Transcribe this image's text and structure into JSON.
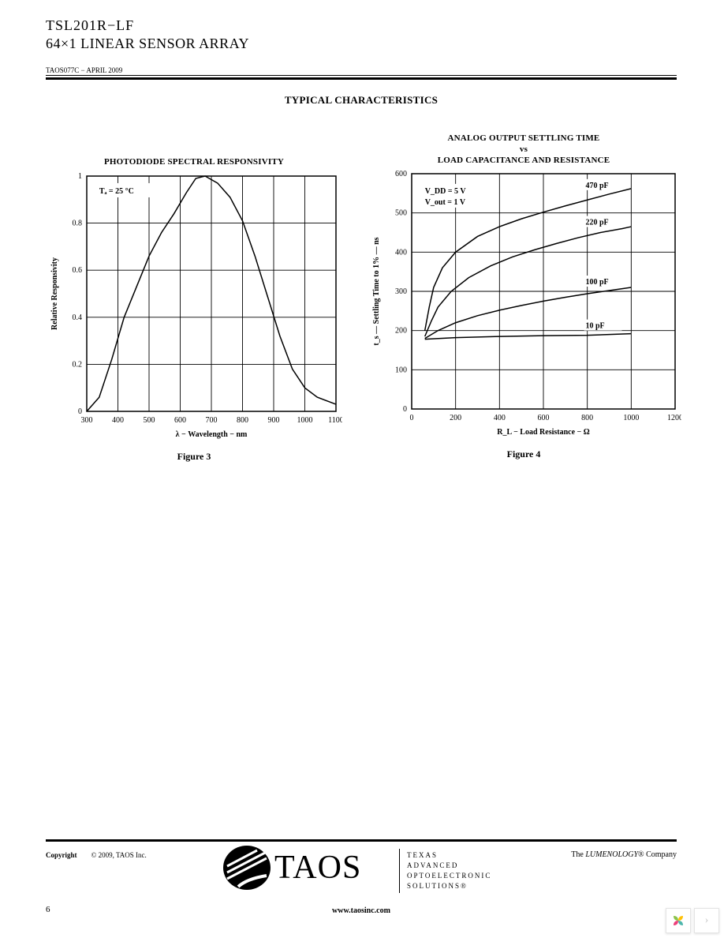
{
  "header": {
    "part_number": "TSL201R−LF",
    "description": "64×1 LINEAR SENSOR ARRAY",
    "doc_id_date": "TAOS077C − APRIL 2009"
  },
  "section_title": "TYPICAL CHARACTERISTICS",
  "chart_left": {
    "type": "line",
    "title": "PHOTODIODE SPECTRAL RESPONSIVITY",
    "annotation": "Tₐ = 25 °C",
    "xlabel": "λ − Wavelength − nm",
    "ylabel": "Relative Responsivity",
    "xlim": [
      300,
      1100
    ],
    "ylim": [
      0,
      1
    ],
    "xticks": [
      300,
      400,
      500,
      600,
      700,
      800,
      900,
      1000,
      1100
    ],
    "yticks": [
      0,
      0.2,
      0.4,
      0.6,
      0.8,
      1
    ],
    "points": [
      [
        300,
        0.0
      ],
      [
        340,
        0.06
      ],
      [
        380,
        0.22
      ],
      [
        420,
        0.4
      ],
      [
        460,
        0.53
      ],
      [
        500,
        0.66
      ],
      [
        540,
        0.76
      ],
      [
        580,
        0.84
      ],
      [
        620,
        0.93
      ],
      [
        650,
        0.99
      ],
      [
        680,
        1.0
      ],
      [
        720,
        0.97
      ],
      [
        760,
        0.91
      ],
      [
        800,
        0.81
      ],
      [
        840,
        0.66
      ],
      [
        880,
        0.49
      ],
      [
        920,
        0.32
      ],
      [
        960,
        0.18
      ],
      [
        1000,
        0.1
      ],
      [
        1040,
        0.06
      ],
      [
        1080,
        0.04
      ],
      [
        1100,
        0.03
      ]
    ],
    "line_color": "#000000",
    "line_width": 1.5,
    "grid_color": "#000000",
    "background_color": "#ffffff",
    "tick_fontsize": 10,
    "label_fontsize": 10,
    "title_fontsize": 11,
    "caption": "Figure 3"
  },
  "chart_right": {
    "type": "line",
    "title_line1": "ANALOG OUTPUT SETTLING TIME",
    "title_vs": "vs",
    "title_line2": "LOAD CAPACITANCE AND RESISTANCE",
    "annotation1": "V_DD = 5 V",
    "annotation2": "V_out = 1 V",
    "xlabel": "R_L − Load Resistance − Ω",
    "ylabel": "t_s — Settling Time to 1% — ns",
    "xlim": [
      0,
      1200
    ],
    "ylim": [
      0,
      600
    ],
    "xticks": [
      0,
      200,
      400,
      600,
      800,
      1000,
      1200
    ],
    "yticks": [
      0,
      100,
      200,
      300,
      400,
      500,
      600
    ],
    "series": [
      {
        "label": "470 pF",
        "label_at_x": 900,
        "points": [
          [
            60,
            200
          ],
          [
            80,
            260
          ],
          [
            100,
            310
          ],
          [
            140,
            360
          ],
          [
            200,
            400
          ],
          [
            300,
            440
          ],
          [
            400,
            465
          ],
          [
            500,
            485
          ],
          [
            600,
            502
          ],
          [
            700,
            518
          ],
          [
            800,
            533
          ],
          [
            900,
            548
          ],
          [
            1000,
            562
          ]
        ]
      },
      {
        "label": "220 pF",
        "label_at_x": 900,
        "points": [
          [
            60,
            185
          ],
          [
            90,
            225
          ],
          [
            120,
            260
          ],
          [
            180,
            300
          ],
          [
            260,
            335
          ],
          [
            360,
            365
          ],
          [
            460,
            388
          ],
          [
            560,
            406
          ],
          [
            660,
            422
          ],
          [
            760,
            437
          ],
          [
            860,
            450
          ],
          [
            960,
            460
          ],
          [
            1000,
            465
          ]
        ]
      },
      {
        "label": "100 pF",
        "label_at_x": 900,
        "points": [
          [
            60,
            180
          ],
          [
            120,
            200
          ],
          [
            200,
            220
          ],
          [
            300,
            238
          ],
          [
            400,
            252
          ],
          [
            500,
            264
          ],
          [
            600,
            275
          ],
          [
            700,
            285
          ],
          [
            800,
            294
          ],
          [
            900,
            302
          ],
          [
            1000,
            310
          ]
        ]
      },
      {
        "label": "10 pF",
        "label_at_x": 900,
        "points": [
          [
            60,
            178
          ],
          [
            200,
            182
          ],
          [
            400,
            185
          ],
          [
            600,
            187
          ],
          [
            800,
            188
          ],
          [
            900,
            190
          ],
          [
            1000,
            192
          ]
        ]
      }
    ],
    "line_color": "#000000",
    "line_width": 1.5,
    "grid_color": "#000000",
    "background_color": "#ffffff",
    "tick_fontsize": 10,
    "label_fontsize": 10,
    "title_fontsize": 11,
    "caption": "Figure 4"
  },
  "footer": {
    "copyright_label": "Copyright",
    "copyright_text": "© 2009, TAOS Inc.",
    "company_expansion": [
      "TEXAS",
      "ADVANCED",
      "OPTOELECTRONIC",
      "SOLUTIONS®"
    ],
    "tagline_prefix": "The ",
    "tagline_brand": "LUMENOLOGY",
    "tagline_suffix": "® Company",
    "website": "www.taosinc.com",
    "page_number": "6"
  }
}
